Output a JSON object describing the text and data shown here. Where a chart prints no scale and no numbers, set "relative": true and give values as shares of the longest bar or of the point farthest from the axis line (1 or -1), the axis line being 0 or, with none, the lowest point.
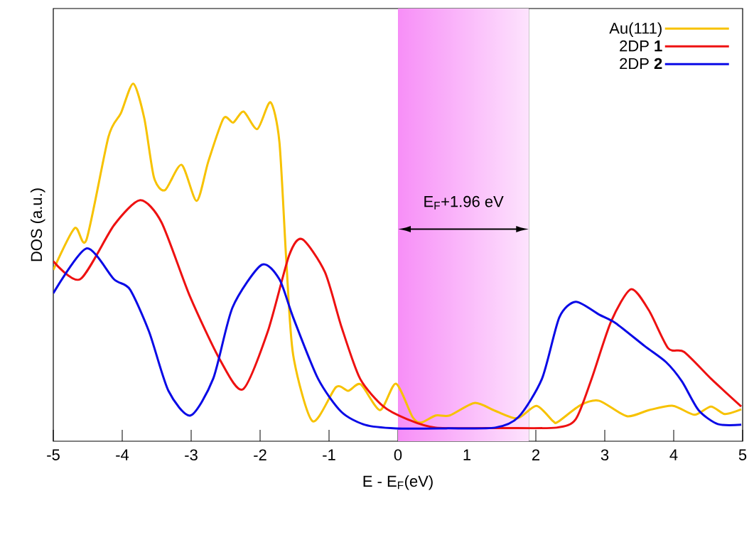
{
  "chart_data": {
    "type": "line",
    "relative": true,
    "xlabel": "E - E$_{F}$(eV)",
    "ylabel": "DOS (a.u.)",
    "xlim": [
      -5,
      5
    ],
    "xticks": [
      -5,
      -4,
      -3,
      -2,
      -1,
      0,
      1,
      2,
      3,
      4,
      5
    ],
    "tick_labels": "x",
    "legend": "top right",
    "line_style": "solid",
    "marker": "none",
    "bands": [
      {
        "axis": "x",
        "from": 0,
        "to": 1.9,
        "label": "E$_{F}$+1.96 eV",
        "color": "#f78ef7"
      }
    ],
    "series": [
      {
        "name": "Au(111)",
        "color": "#f7c200",
        "x": [
          -5,
          -4.69,
          -4.52,
          -4.2,
          -4.02,
          -3.84,
          -3.68,
          -3.54,
          -3.38,
          -3.14,
          -2.92,
          -2.75,
          -2.53,
          -2.39,
          -2.24,
          -2.04,
          -1.85,
          -1.72,
          -1.62,
          -1.52,
          -1.24,
          -0.9,
          -0.72,
          -0.54,
          -0.26,
          -0.03,
          0.21,
          0.33,
          0.55,
          0.75,
          1.11,
          1.41,
          1.73,
          2.01,
          2.25,
          2.32,
          2.65,
          2.92,
          3.32,
          3.64,
          3.99,
          4.3,
          4.54,
          4.74,
          4.98
        ],
        "values": [
          0.479,
          0.596,
          0.563,
          0.851,
          0.917,
          1.0,
          0.903,
          0.738,
          0.702,
          0.773,
          0.672,
          0.783,
          0.903,
          0.891,
          0.922,
          0.873,
          0.948,
          0.837,
          0.505,
          0.241,
          0.056,
          0.151,
          0.141,
          0.159,
          0.087,
          0.161,
          0.068,
          0.052,
          0.072,
          0.072,
          0.107,
          0.085,
          0.064,
          0.099,
          0.056,
          0.054,
          0.101,
          0.113,
          0.07,
          0.087,
          0.099,
          0.074,
          0.097,
          0.076,
          0.089
        ]
      },
      {
        "name": "2DP **1**",
        "color": "#ee1111",
        "x": [
          -5,
          -4.61,
          -4.12,
          -3.74,
          -3.43,
          -3.02,
          -2.58,
          -2.25,
          -1.89,
          -1.58,
          -1.39,
          -1.06,
          -0.82,
          -0.55,
          -0.21,
          0.13,
          0.55,
          1.5,
          2.3,
          2.58,
          2.81,
          3.09,
          3.38,
          3.64,
          3.92,
          4.15,
          4.54,
          4.98
        ],
        "values": [
          0.503,
          0.453,
          0.604,
          0.674,
          0.612,
          0.406,
          0.227,
          0.145,
          0.306,
          0.519,
          0.565,
          0.473,
          0.32,
          0.175,
          0.097,
          0.062,
          0.038,
          0.037,
          0.038,
          0.062,
          0.175,
          0.334,
          0.425,
          0.366,
          0.26,
          0.25,
          0.175,
          0.097
        ]
      },
      {
        "name": "2DP **2**",
        "color": "#0a0ae6",
        "x": [
          -5,
          -4.52,
          -4.12,
          -3.89,
          -3.61,
          -3.33,
          -3.01,
          -2.68,
          -2.4,
          -1.98,
          -1.72,
          -1.52,
          -1.16,
          -0.82,
          -0.48,
          -0.03,
          0.7,
          1.41,
          1.75,
          2.09,
          2.34,
          2.58,
          2.92,
          3.16,
          3.58,
          3.89,
          4.12,
          4.36,
          4.64,
          4.98
        ],
        "values": [
          0.414,
          0.539,
          0.453,
          0.425,
          0.306,
          0.141,
          0.072,
          0.175,
          0.374,
          0.493,
          0.453,
          0.346,
          0.175,
          0.082,
          0.046,
          0.036,
          0.036,
          0.038,
          0.068,
          0.175,
          0.346,
          0.39,
          0.354,
          0.33,
          0.266,
          0.221,
          0.167,
          0.087,
          0.048,
          0.046
        ]
      }
    ]
  }
}
